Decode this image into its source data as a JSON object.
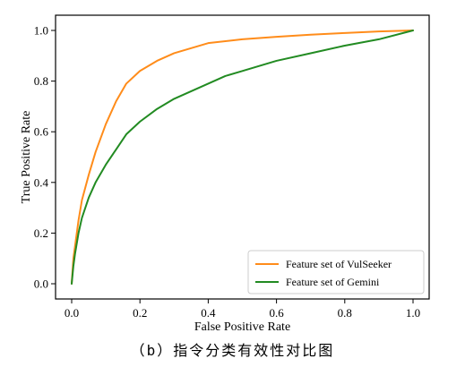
{
  "caption": "（b）指令分类有效性对比图",
  "chart_data": {
    "type": "line",
    "xlabel": "False Positive Rate",
    "ylabel": "True Positive Rate",
    "xlim": [
      0.0,
      1.0
    ],
    "ylim": [
      0.0,
      1.0
    ],
    "x_ticks": [
      "0.0",
      "0.2",
      "0.4",
      "0.6",
      "0.8",
      "1.0"
    ],
    "y_ticks": [
      "0.0",
      "0.2",
      "0.4",
      "0.6",
      "0.8",
      "1.0"
    ],
    "grid": false,
    "legend_position": "bottom-right",
    "series": [
      {
        "name": "Feature set of VulSeeker",
        "color": "#ff8c1a",
        "x": [
          0.0,
          0.005,
          0.01,
          0.02,
          0.03,
          0.05,
          0.07,
          0.1,
          0.13,
          0.16,
          0.2,
          0.25,
          0.3,
          0.35,
          0.4,
          0.5,
          0.6,
          0.7,
          0.8,
          0.9,
          1.0
        ],
        "y": [
          0.0,
          0.1,
          0.15,
          0.25,
          0.33,
          0.43,
          0.52,
          0.63,
          0.72,
          0.79,
          0.84,
          0.88,
          0.91,
          0.93,
          0.95,
          0.965,
          0.975,
          0.983,
          0.99,
          0.996,
          1.0
        ]
      },
      {
        "name": "Feature set of Gemini",
        "color": "#228b22",
        "x": [
          0.0,
          0.005,
          0.01,
          0.02,
          0.03,
          0.05,
          0.07,
          0.1,
          0.13,
          0.16,
          0.2,
          0.25,
          0.3,
          0.35,
          0.4,
          0.45,
          0.5,
          0.6,
          0.7,
          0.8,
          0.9,
          1.0
        ],
        "y": [
          0.0,
          0.07,
          0.12,
          0.2,
          0.26,
          0.34,
          0.4,
          0.47,
          0.53,
          0.59,
          0.64,
          0.69,
          0.73,
          0.76,
          0.79,
          0.82,
          0.84,
          0.88,
          0.91,
          0.94,
          0.965,
          1.0
        ]
      }
    ]
  }
}
